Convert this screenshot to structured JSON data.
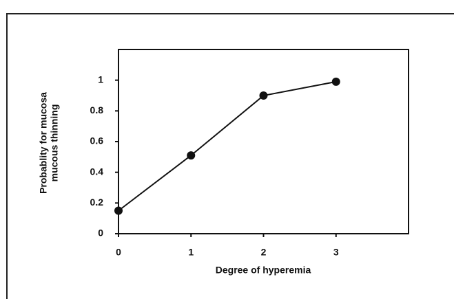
{
  "chart_data": {
    "type": "line",
    "xlabel": "Degree of hyperemia",
    "ylabel": [
      "Probablity for mucosa",
      "mucous thinning"
    ],
    "x": [
      0,
      1,
      2,
      3
    ],
    "series": [
      {
        "color": "#111111",
        "values": [
          0.15,
          0.51,
          0.9,
          0.99
        ]
      }
    ],
    "xlim": [
      0,
      4
    ],
    "xticks": [
      0,
      1,
      2,
      3
    ],
    "ylim": [
      0,
      1.2
    ],
    "yticks": [
      0,
      0.2,
      0.4,
      0.6,
      0.8,
      1
    ],
    "grid": false
  }
}
